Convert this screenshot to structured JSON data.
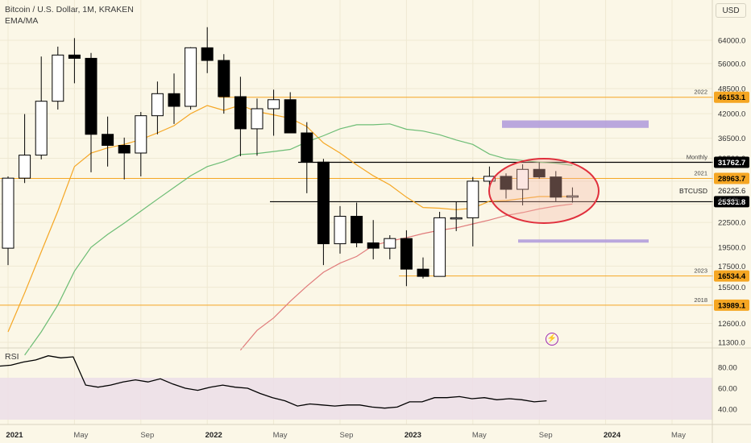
{
  "header": {
    "title": "Bitcoin / U.S. Dollar, 1M, KRAKEN",
    "indicator": "EMA/MA",
    "currency": "USD"
  },
  "rsi": {
    "label": "RSI",
    "ticks": [
      "80.00",
      "60.00",
      "40.00"
    ],
    "values": [
      81,
      82,
      85,
      87,
      91,
      89,
      90,
      63,
      61,
      63,
      66,
      68,
      66,
      69,
      64,
      60,
      58,
      61,
      63,
      61,
      60,
      55,
      51,
      48,
      43,
      45,
      44,
      43,
      44,
      44,
      42,
      41,
      42,
      47,
      47,
      51,
      51,
      52,
      50,
      51,
      49,
      50,
      49,
      47,
      48
    ]
  },
  "chart_data": {
    "type": "candlestick",
    "title": "Bitcoin / U.S. Dollar, 1M, KRAKEN",
    "y_scale": "log",
    "ylim": [
      11300,
      72000
    ],
    "y_ticks": [
      "64000.0",
      "56000.0",
      "48500.0",
      "42000.0",
      "36500.0",
      "32500.0",
      "28500.0",
      "25000.0",
      "22500.0",
      "19500.0",
      "17500.0",
      "15500.0",
      "12600.0",
      "11300.0"
    ],
    "x_ticks": [
      "2021",
      "May",
      "Sep",
      "2022",
      "May",
      "Sep",
      "2023",
      "May",
      "Sep",
      "2024",
      "May"
    ],
    "candles": [
      {
        "o": 19400,
        "h": 29300,
        "l": 17600,
        "c": 29000
      },
      {
        "o": 29000,
        "h": 41900,
        "l": 28200,
        "c": 33100
      },
      {
        "o": 33100,
        "h": 58300,
        "l": 32300,
        "c": 45100
      },
      {
        "o": 45100,
        "h": 61700,
        "l": 43000,
        "c": 58800
      },
      {
        "o": 58800,
        "h": 64800,
        "l": 50000,
        "c": 57700
      },
      {
        "o": 57700,
        "h": 59500,
        "l": 30000,
        "c": 37300
      },
      {
        "o": 37300,
        "h": 41300,
        "l": 31000,
        "c": 35000
      },
      {
        "o": 35000,
        "h": 36600,
        "l": 28800,
        "c": 33500
      },
      {
        "o": 33500,
        "h": 42400,
        "l": 29300,
        "c": 41500
      },
      {
        "o": 41500,
        "h": 50500,
        "l": 37300,
        "c": 47100
      },
      {
        "o": 47100,
        "h": 52900,
        "l": 39600,
        "c": 43800
      },
      {
        "o": 43800,
        "h": 61500,
        "l": 43000,
        "c": 61300
      },
      {
        "o": 61300,
        "h": 69000,
        "l": 53000,
        "c": 57000
      },
      {
        "o": 57000,
        "h": 59100,
        "l": 42000,
        "c": 46300
      },
      {
        "o": 46300,
        "h": 51900,
        "l": 32900,
        "c": 38500
      },
      {
        "o": 38500,
        "h": 45800,
        "l": 33000,
        "c": 43200
      },
      {
        "o": 43200,
        "h": 48200,
        "l": 37000,
        "c": 45500
      },
      {
        "o": 45500,
        "h": 47500,
        "l": 37600,
        "c": 37600
      },
      {
        "o": 37600,
        "h": 40000,
        "l": 26600,
        "c": 31800
      },
      {
        "o": 31800,
        "h": 32400,
        "l": 17600,
        "c": 19900
      },
      {
        "o": 19900,
        "h": 24700,
        "l": 18800,
        "c": 23300
      },
      {
        "o": 23300,
        "h": 25200,
        "l": 19500,
        "c": 20000
      },
      {
        "o": 20000,
        "h": 22800,
        "l": 18200,
        "c": 19400
      },
      {
        "o": 19400,
        "h": 20900,
        "l": 18200,
        "c": 20500
      },
      {
        "o": 20500,
        "h": 21500,
        "l": 15600,
        "c": 17200
      },
      {
        "o": 17200,
        "h": 18400,
        "l": 16300,
        "c": 16500
      },
      {
        "o": 16500,
        "h": 23900,
        "l": 16500,
        "c": 23100
      },
      {
        "o": 23100,
        "h": 25300,
        "l": 21400,
        "c": 23100
      },
      {
        "o": 23100,
        "h": 29200,
        "l": 19600,
        "c": 28500
      },
      {
        "o": 28500,
        "h": 31000,
        "l": 26900,
        "c": 29300
      },
      {
        "o": 29300,
        "h": 29800,
        "l": 25800,
        "c": 27200
      },
      {
        "o": 27200,
        "h": 31400,
        "l": 24800,
        "c": 30500
      },
      {
        "o": 30500,
        "h": 31800,
        "l": 28900,
        "c": 29200
      },
      {
        "o": 29200,
        "h": 30200,
        "l": 25400,
        "c": 26000
      },
      {
        "o": 26000,
        "h": 27500,
        "l": 25200,
        "c": 26200
      }
    ],
    "series": [
      {
        "name": "",
        "color": "#f5a623",
        "values": [
          12000,
          15000,
          19000,
          24000,
          31000,
          33500,
          34500,
          35200,
          36200,
          37600,
          39200,
          42000,
          44000,
          42800,
          44100,
          42500,
          41700,
          40900,
          39000,
          35500,
          33500,
          31300,
          29400,
          27900,
          26000,
          24500,
          24400,
          24200,
          24400,
          25400,
          25500,
          25800,
          26100,
          26100,
          26100
        ]
      },
      {
        "name": "",
        "color": "#6dbd75",
        "values": [
          null,
          10500,
          12000,
          14000,
          17000,
          19500,
          21000,
          22400,
          24000,
          25700,
          27500,
          29400,
          31000,
          31900,
          33200,
          33400,
          33800,
          34200,
          35700,
          37000,
          38500,
          39400,
          39400,
          39600,
          38400,
          38000,
          37200,
          36100,
          35200,
          33300,
          32400,
          32100,
          31800,
          31600,
          31200
        ]
      },
      {
        "name": "",
        "color": "#e07b7b",
        "values": [
          null,
          null,
          null,
          null,
          null,
          null,
          null,
          null,
          null,
          null,
          null,
          null,
          null,
          null,
          10800,
          12100,
          13000,
          14300,
          15600,
          16900,
          17800,
          18500,
          19700,
          20200,
          20600,
          21100,
          21500,
          21800,
          22300,
          22800,
          23400,
          23800,
          24300,
          24700,
          25000
        ]
      }
    ],
    "levels": [
      {
        "label": "2022",
        "value": 46153.1,
        "value_text": "46153.1",
        "color": "#f5a623",
        "tag_bg": "#f5a623",
        "line_from": 272,
        "line_to": 885
      },
      {
        "label": "Monthly",
        "value": 31762.7,
        "value_text": "31762.7",
        "color": "#000000",
        "tag_bg": "#000000",
        "line_from": 370,
        "line_to": 885
      },
      {
        "label": "2021",
        "value": 28963.7,
        "value_text": "28963.7",
        "color": "#f5a623",
        "tag_bg": "#f5a623",
        "line_from": 0,
        "line_to": 885
      },
      {
        "label": "",
        "value": 25331.8,
        "value_text": "25331.8",
        "color": "#000000",
        "tag_bg": "#000000",
        "line_from": 335,
        "line_to": 885
      },
      {
        "label": "2023",
        "value": 16534.4,
        "value_text": "16534.4",
        "color": "#f5a623",
        "tag_bg": "#f5a623",
        "line_from": 495,
        "line_to": 885
      },
      {
        "label": "2018",
        "value": 13989.1,
        "value_text": "13989.1",
        "color": "#f5a623",
        "tag_bg": "#f5a623",
        "line_from": 0,
        "line_to": 885
      }
    ],
    "price_tag": {
      "label": "BTCUSD",
      "value": 26225.6,
      "value_text": "26225.6",
      "countdown": "4d 12h"
    },
    "zones": [
      {
        "from": 38700,
        "to": 40400,
        "x_from": 623,
        "x_to": 805,
        "color": "#b39ddb"
      },
      {
        "from": 20100,
        "to": 20400,
        "x_from": 643,
        "x_to": 805,
        "color": "#b39ddb"
      }
    ]
  }
}
